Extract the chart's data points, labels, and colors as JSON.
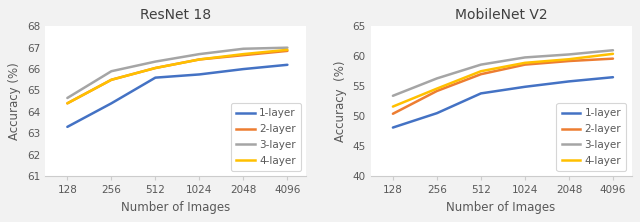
{
  "x": [
    128,
    256,
    512,
    1024,
    2048,
    4096
  ],
  "resnet18": {
    "title": "ResNet 18",
    "ylabel": "Accuracy (%)",
    "xlabel": "Number of Images",
    "ylim": [
      61,
      68
    ],
    "yticks": [
      61,
      62,
      63,
      64,
      65,
      66,
      67,
      68
    ],
    "1-layer": [
      63.3,
      64.4,
      65.6,
      65.75,
      66.0,
      66.2
    ],
    "2-layer": [
      64.4,
      65.5,
      66.05,
      66.45,
      66.65,
      66.85
    ],
    "3-layer": [
      64.65,
      65.9,
      66.35,
      66.7,
      66.95,
      67.0
    ],
    "4-layer": [
      64.4,
      65.5,
      66.05,
      66.45,
      66.7,
      66.9
    ]
  },
  "mobilenetv2": {
    "title": "MobileNet V2",
    "ylabel": "Accuracy  (%)",
    "xlabel": "Number of Images",
    "ylim": [
      40,
      65
    ],
    "yticks": [
      40,
      45,
      50,
      55,
      60,
      65
    ],
    "1-layer": [
      48.1,
      50.5,
      53.8,
      54.9,
      55.8,
      56.5
    ],
    "2-layer": [
      50.4,
      54.2,
      57.0,
      58.6,
      59.2,
      59.6
    ],
    "3-layer": [
      53.4,
      56.3,
      58.6,
      59.8,
      60.3,
      61.0
    ],
    "4-layer": [
      51.6,
      54.6,
      57.5,
      58.9,
      59.5,
      60.4
    ]
  },
  "colors": {
    "1-layer": "#4472C4",
    "2-layer": "#ED7D31",
    "3-layer": "#A5A5A5",
    "4-layer": "#FFC000"
  },
  "legend_order": [
    "1-layer",
    "2-layer",
    "3-layer",
    "4-layer"
  ],
  "linewidth": 1.8,
  "figure_facecolor": "#F2F2F2",
  "axes_facecolor": "#FFFFFF",
  "grid_color": "#FFFFFF",
  "spine_color": "#CCCCCC",
  "tick_color": "#595959",
  "label_color": "#595959",
  "title_color": "#404040"
}
